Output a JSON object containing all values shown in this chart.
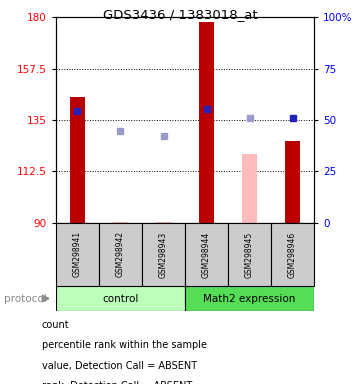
{
  "title": "GDS3436 / 1383018_at",
  "samples": [
    "GSM298941",
    "GSM298942",
    "GSM298943",
    "GSM298944",
    "GSM298945",
    "GSM298946"
  ],
  "ylim_left": [
    90,
    180
  ],
  "ylim_right": [
    0,
    100
  ],
  "yticks_left": [
    90,
    112.5,
    135,
    157.5,
    180
  ],
  "ytick_labels_left": [
    "90",
    "112.5",
    "135",
    "157.5",
    "180"
  ],
  "yticks_right": [
    0,
    25,
    50,
    75,
    100
  ],
  "ytick_labels_right": [
    "0",
    "25",
    "50",
    "75",
    "100%"
  ],
  "red_bar_values": [
    145,
    null,
    null,
    178,
    null,
    126
  ],
  "pink_bar_values": [
    null,
    90.5,
    90.3,
    null,
    120,
    null
  ],
  "blue_square_values": [
    139,
    null,
    null,
    140,
    null,
    136
  ],
  "light_blue_square_values": [
    null,
    130,
    128,
    null,
    136,
    null
  ],
  "red_bar_color": "#bb0000",
  "pink_bar_color": "#ffbbbb",
  "blue_square_color": "#2222bb",
  "light_blue_square_color": "#9999cc",
  "bar_bottom": 90,
  "bar_width": 0.35,
  "sq_size": 5,
  "control_label": "control",
  "math2_label": "Math2 expression",
  "protocol_label": "protocol",
  "control_bg": "#bbffbb",
  "math2_bg": "#55dd55",
  "sample_bg": "#cccccc",
  "grid_lines": [
    112.5,
    135,
    157.5
  ],
  "legend_items": [
    {
      "color": "#bb0000",
      "label": "count"
    },
    {
      "color": "#2222bb",
      "label": "percentile rank within the sample"
    },
    {
      "color": "#ffbbbb",
      "label": "value, Detection Call = ABSENT"
    },
    {
      "color": "#9999cc",
      "label": "rank, Detection Call = ABSENT"
    }
  ]
}
